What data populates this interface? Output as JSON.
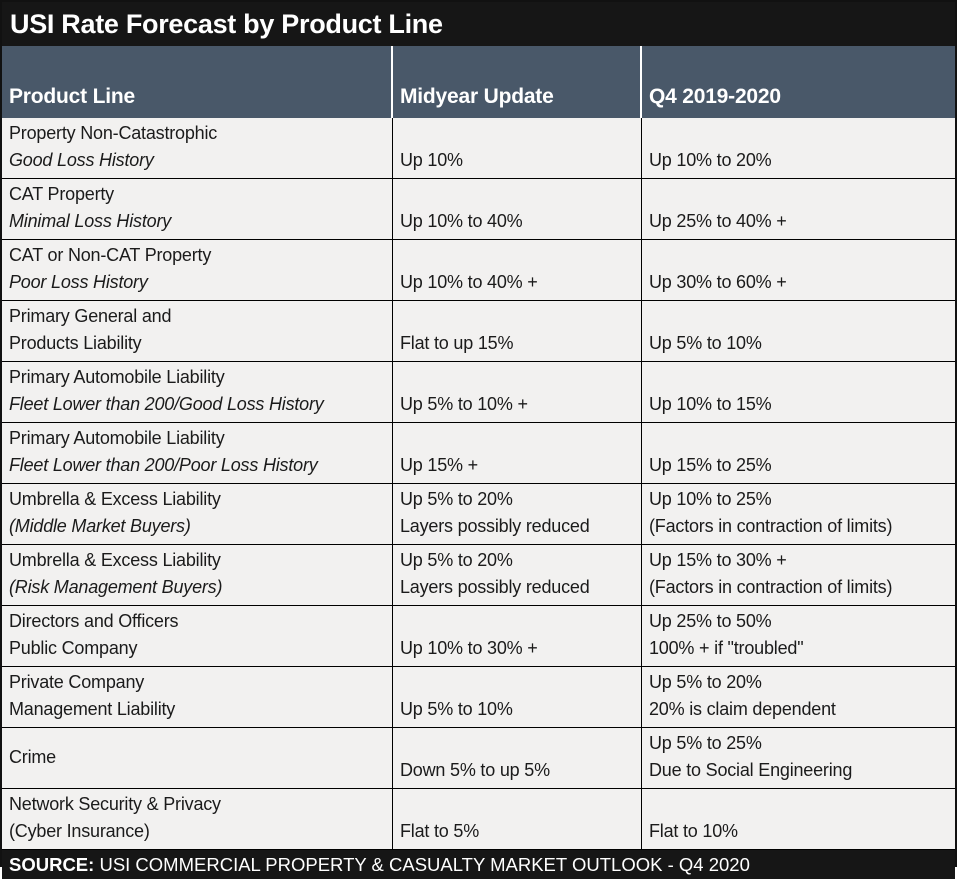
{
  "title": "USI Rate Forecast by Product Line",
  "header": {
    "product_line": "Product Line",
    "midyear": "Midyear Update",
    "q4": "Q4 2019-2020"
  },
  "table": {
    "rows": [
      {
        "product": [
          "Property Non-Catastrophic",
          "Good Loss History"
        ],
        "midyear": [
          "Up 10%"
        ],
        "q4": [
          "Up 10% to 20%"
        ]
      },
      {
        "product": [
          "CAT Property",
          "Minimal Loss History"
        ],
        "midyear": [
          "Up 10% to 40%"
        ],
        "q4": [
          "Up 25% to 40% +"
        ]
      },
      {
        "product": [
          "CAT or Non-CAT Property",
          "Poor Loss History"
        ],
        "midyear": [
          "Up 10% to 40% +"
        ],
        "q4": [
          "Up 30% to 60% +"
        ]
      },
      {
        "product": [
          "Primary General and",
          "Products Liability"
        ],
        "midyear": [
          "Flat to up 15%"
        ],
        "q4": [
          "Up 5% to 10%"
        ]
      },
      {
        "product": [
          "Primary Automobile Liability",
          "Fleet Lower than 200/Good Loss History"
        ],
        "midyear": [
          "Up 5% to 10% +"
        ],
        "q4": [
          "Up 10% to 15%"
        ]
      },
      {
        "product": [
          "Primary Automobile Liability",
          "Fleet Lower than 200/Poor Loss History"
        ],
        "midyear": [
          "Up 15% +"
        ],
        "q4": [
          "Up 15% to 25%"
        ]
      },
      {
        "product": [
          "Umbrella & Excess Liability",
          "(Middle Market Buyers)"
        ],
        "midyear": [
          "Up 5% to 20%",
          "Layers possibly reduced"
        ],
        "q4": [
          "Up 10% to 25%",
          "(Factors in contraction of limits)"
        ]
      },
      {
        "product": [
          "Umbrella & Excess Liability",
          "(Risk Management Buyers)"
        ],
        "midyear": [
          "Up 5% to 20%",
          "Layers possibly reduced"
        ],
        "q4": [
          "Up 15% to 30% +",
          "(Factors in contraction of limits)"
        ]
      },
      {
        "product": [
          "Directors and Officers",
          "Public Company"
        ],
        "midyear": [
          "Up 10% to 30% +"
        ],
        "q4": [
          "Up 25% to 50%",
          "100% + if \"troubled\""
        ]
      },
      {
        "product": [
          "Private Company",
          "Management Liability"
        ],
        "midyear": [
          "Up 5% to 10%"
        ],
        "q4": [
          "Up 5% to 20%",
          "20% is claim dependent"
        ]
      },
      {
        "product": [
          "Crime"
        ],
        "midyear": [
          "Down 5% to up 5%"
        ],
        "q4": [
          "Up 5% to 25%",
          "Due to Social Engineering"
        ]
      },
      {
        "product": [
          "Network Security & Privacy",
          "(Cyber Insurance)"
        ],
        "midyear": [
          "Flat to 5%"
        ],
        "q4": [
          "Flat to 10%"
        ]
      }
    ]
  },
  "footer": {
    "source_label": "SOURCE:",
    "source_text": " USI COMMERCIAL PROPERTY & CASUALTY MARKET OUTLOOK - Q4 2020"
  },
  "colors": {
    "title_bar_bg": "#161616",
    "header_bg": "#495869",
    "row_bg": "#f2f1f0",
    "grid_line": "#000000",
    "header_text": "#ffffff",
    "cell_text": "#1b1b1b"
  },
  "chart_data": {
    "type": "table",
    "title": "USI Rate Forecast by Product Line",
    "columns": [
      "Product Line",
      "Midyear Update",
      "Q4 2019-2020"
    ],
    "rows": [
      [
        "Property Non-Catastrophic — Good Loss History",
        "Up 10%",
        "Up 10% to 20%"
      ],
      [
        "CAT Property — Minimal Loss History",
        "Up 10% to 40%",
        "Up 25% to 40% +"
      ],
      [
        "CAT or Non-CAT Property — Poor Loss History",
        "Up 10% to 40% +",
        "Up 30% to 60% +"
      ],
      [
        "Primary General and Products Liability",
        "Flat to up 15%",
        "Up 5% to 10%"
      ],
      [
        "Primary Automobile Liability — Fleet Lower than 200/Good Loss History",
        "Up 5% to 10% +",
        "Up 10% to 15%"
      ],
      [
        "Primary Automobile Liability — Fleet Lower than 200/Poor Loss History",
        "Up 15% +",
        "Up 15% to 25%"
      ],
      [
        "Umbrella & Excess Liability (Middle Market Buyers)",
        "Up 5% to 20%; Layers possibly reduced",
        "Up 10% to 25%; (Factors in contraction of limits)"
      ],
      [
        "Umbrella & Excess Liability (Risk Management Buyers)",
        "Up 5% to 20%; Layers possibly reduced",
        "Up 15% to 30% +; (Factors in contraction of limits)"
      ],
      [
        "Directors and Officers — Public Company",
        "Up 10% to 30% +",
        "Up 25% to 50%; 100% + if \"troubled\""
      ],
      [
        "Private Company — Management Liability",
        "Up 5% to 10%",
        "Up 5% to 20%; 20% is claim dependent"
      ],
      [
        "Crime",
        "Down 5% to up 5%",
        "Up 5% to 25%; Due to Social Engineering"
      ],
      [
        "Network Security & Privacy (Cyber Insurance)",
        "Flat to 5%",
        "Flat to 10%"
      ]
    ],
    "source": "SOURCE: USI COMMERCIAL PROPERTY & CASUALTY MARKET OUTLOOK - Q4 2020"
  }
}
